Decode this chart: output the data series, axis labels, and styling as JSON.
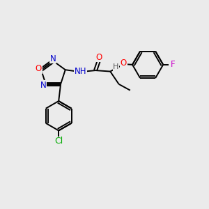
{
  "background_color": "#ebebeb",
  "bond_color": "#000000",
  "atom_colors": {
    "O": "#ff0000",
    "N": "#0000cc",
    "Cl": "#00aa00",
    "F": "#cc00cc",
    "H": "#555555",
    "C": "#000000"
  },
  "figsize": [
    3.0,
    3.0
  ],
  "dpi": 100,
  "lw": 1.4,
  "fontsize": 8.5
}
